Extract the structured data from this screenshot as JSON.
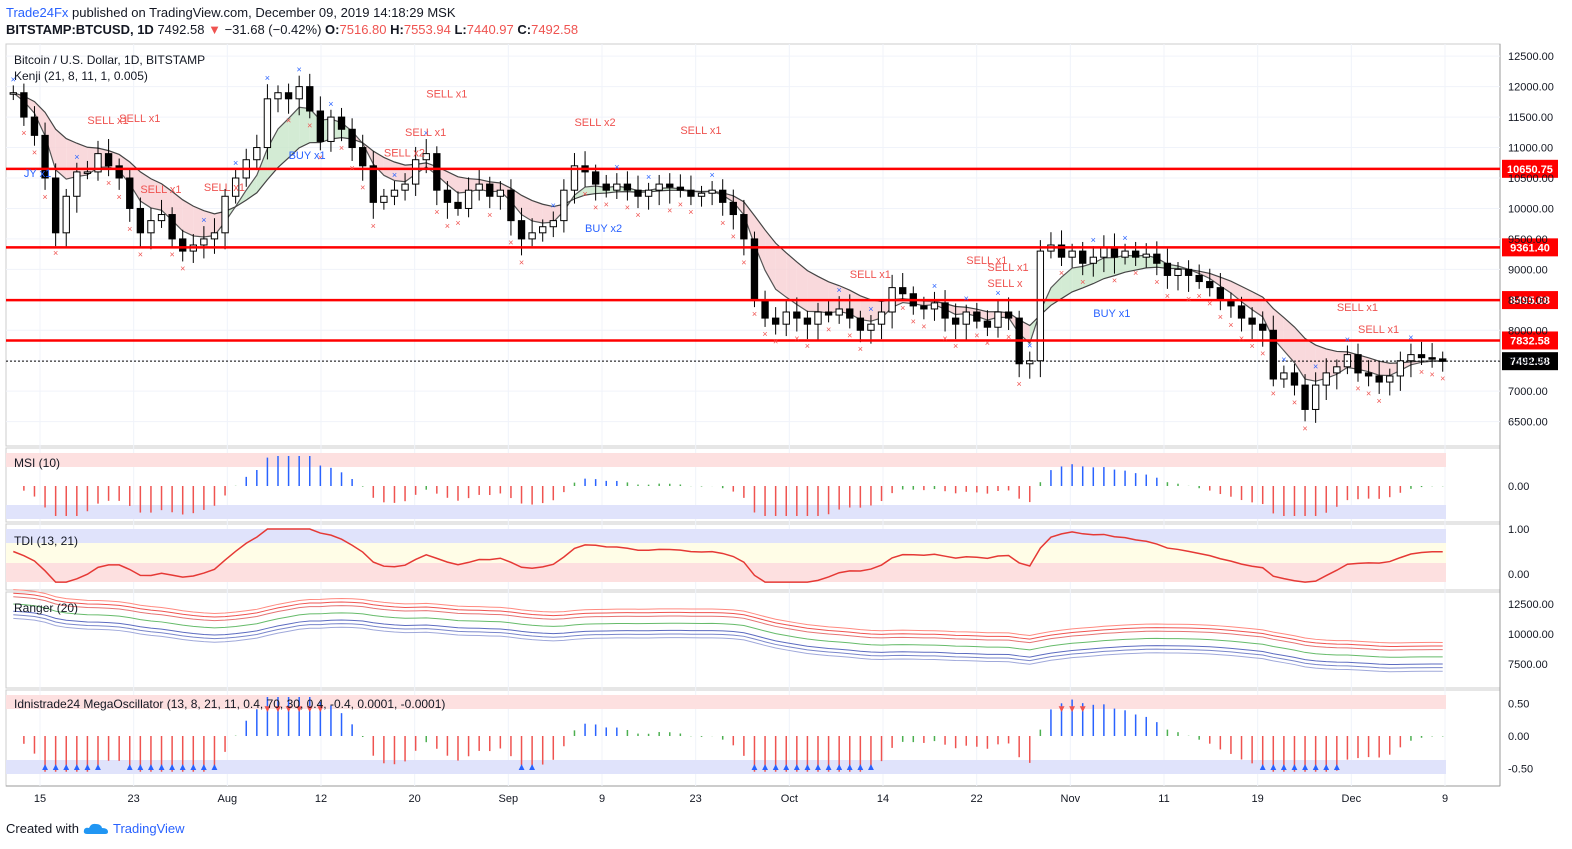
{
  "header": {
    "publisher": "Trade24Fx",
    "published_text": "published on TradingView.com, December 09, 2019 14:18:29 MSK",
    "symbol": "BITSTAMP:BTCUSD, 1D",
    "last": "7492.58",
    "change": "−31.68 (−0.42%)",
    "o_label": "O:",
    "o": "7516.80",
    "h_label": "H:",
    "h": "7553.94",
    "l_label": "L:",
    "l": "7440.97",
    "c_label": "C:",
    "c": "7492.58"
  },
  "footer": {
    "created_with": "Created with",
    "brand": "TradingView"
  },
  "colors": {
    "up": "#ffffff",
    "down": "#000000",
    "level": "#ff0000",
    "buy": "#2962ff",
    "sell": "#ef5350"
  },
  "chart_data": [
    {
      "type": "candlestick",
      "pane": "price",
      "title": "Bitcoin / U.S. Dollar, 1D, BITSTAMP",
      "indicator_label": "Kenji (21, 8, 11, 1, 0.005)",
      "ylim": [
        6100,
        12700
      ],
      "y_ticks": [
        6500,
        7000,
        7500,
        8000,
        8500,
        9000,
        9500,
        10000,
        10500,
        11000,
        11500,
        12000,
        12500
      ],
      "x_ticks": [
        "15",
        "23",
        "Aug",
        "12",
        "20",
        "Sep",
        "9",
        "23",
        "Oct",
        "14",
        "22",
        "Nov",
        "11",
        "19",
        "Dec",
        "9"
      ],
      "horizontal_levels": [
        10650.75,
        9361.4,
        8495.68,
        7832.58
      ],
      "current_price": 7492.58,
      "closes": [
        11900,
        11500,
        11200,
        10500,
        9600,
        10200,
        10600,
        10600,
        10900,
        10700,
        10500,
        10000,
        9600,
        9800,
        9900,
        9500,
        9300,
        9400,
        9500,
        9600,
        10200,
        10500,
        10800,
        11000,
        11800,
        11900,
        11800,
        12000,
        11600,
        11100,
        11500,
        11300,
        11000,
        10700,
        10100,
        10200,
        10300,
        10400,
        10800,
        10900,
        10300,
        10100,
        10000,
        10300,
        10400,
        10200,
        10300,
        9800,
        9500,
        9600,
        9700,
        9800,
        10300,
        10700,
        10600,
        10400,
        10300,
        10400,
        10300,
        10200,
        10300,
        10400,
        10350,
        10300,
        10200,
        10250,
        10300,
        10100,
        9900,
        9500,
        8500,
        8200,
        8100,
        8300,
        8200,
        8100,
        8300,
        8250,
        8350,
        8200,
        8000,
        8100,
        8300,
        8700,
        8600,
        8400,
        8350,
        8450,
        8200,
        8100,
        8300,
        8150,
        8050,
        8300,
        8200,
        7450,
        7500,
        9300,
        9400,
        9200,
        9300,
        9100,
        9200,
        9350,
        9200,
        9300,
        9200,
        9250,
        9100,
        8900,
        9000,
        8900,
        8800,
        8700,
        8500,
        8400,
        8200,
        8100,
        8000,
        7200,
        7300,
        7100,
        6700,
        7100,
        7300,
        7400,
        7600,
        7300,
        7250,
        7150,
        7250,
        7500,
        7600,
        7550,
        7530,
        7490
      ],
      "series": [
        {
          "name": "MSI (10)",
          "pane": "msi",
          "y_ticks": [
            0.0
          ]
        },
        {
          "name": "TDI (13, 21)",
          "pane": "tdi",
          "y_ticks": [
            0.0,
            1.0
          ]
        },
        {
          "name": "Ranger (20)",
          "pane": "ranger",
          "y_ticks": [
            7500.0,
            10000.0,
            12500.0
          ]
        },
        {
          "name": "Idnistrade24 MegaOscillator (13, 8, 21, 11, 0.4, 70, 30, 0.4, -0.4, 0.0001, -0.0001)",
          "pane": "mega",
          "y_ticks": [
            -0.5,
            0.0,
            0.5
          ]
        }
      ],
      "annotations": [
        {
          "text": "JY x1",
          "x": 0.005
        },
        {
          "text": "SELL x1",
          "x": 0.055
        },
        {
          "text": "SELL x1",
          "x": 0.075
        },
        {
          "text": "SELL x1",
          "x": 0.085
        },
        {
          "text": "SELL x1",
          "x": 0.13
        },
        {
          "text": "BUY x1",
          "x": 0.19
        },
        {
          "text": "SELL x2",
          "x": 0.255
        },
        {
          "text": "SELL x1",
          "x": 0.27
        },
        {
          "text": "SELL x1",
          "x": 0.29
        },
        {
          "text": "SELL x2",
          "x": 0.39
        },
        {
          "text": "BUY x2",
          "x": 0.4
        },
        {
          "text": "SELL x1",
          "x": 0.46
        },
        {
          "text": "SELL x1",
          "x": 0.58
        },
        {
          "text": "SELL x1",
          "x": 0.665
        },
        {
          "text": "SELL x1",
          "x": 0.68
        },
        {
          "text": "SELL x",
          "x": 0.68
        },
        {
          "text": "BUY x1",
          "x": 0.75
        },
        {
          "text": "SELL x1",
          "x": 0.92
        },
        {
          "text": "SELL x1",
          "x": 0.935
        }
      ]
    }
  ]
}
